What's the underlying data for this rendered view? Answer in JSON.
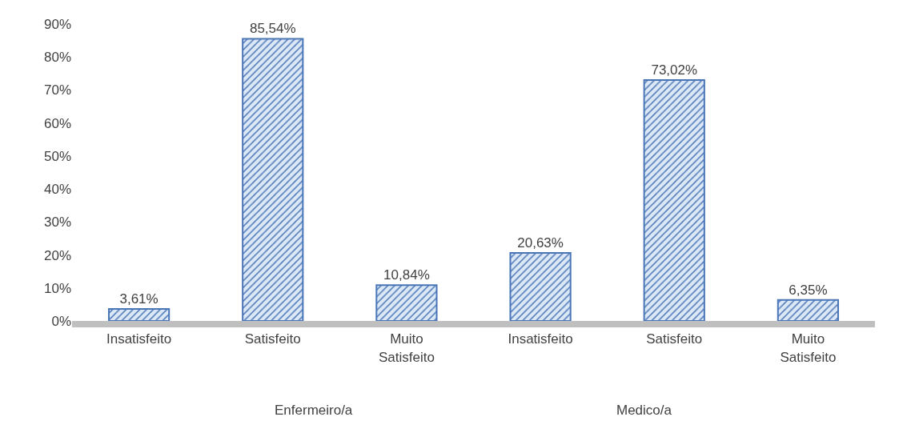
{
  "chart_data": {
    "type": "bar",
    "categories": [
      "Insatisfeito",
      "Satisfeito",
      "Muito Satisfeito",
      "Insatisfeito",
      "Satisfeito",
      "Muito Satisfeito"
    ],
    "values": [
      3.61,
      85.54,
      10.84,
      20.63,
      73.02,
      6.35
    ],
    "value_labels": [
      "3,61%",
      "85,54%",
      "10,84%",
      "20,63%",
      "73,02%",
      "6,35%"
    ],
    "color": "#4a76b8",
    "ylim": [
      0,
      90
    ],
    "yticks": [
      {
        "value": 0,
        "label": "0%"
      },
      {
        "value": 10,
        "label": "10%"
      },
      {
        "value": 20,
        "label": "20%"
      },
      {
        "value": 30,
        "label": "30%"
      },
      {
        "value": 40,
        "label": "40%"
      },
      {
        "value": 50,
        "label": "50%"
      },
      {
        "value": 60,
        "label": "60%"
      },
      {
        "value": 70,
        "label": "70%"
      },
      {
        "value": 80,
        "label": "80%"
      },
      {
        "value": 90,
        "label": "90%"
      }
    ],
    "annotations": [
      "Enfermeiro/a",
      "Medico/a"
    ]
  }
}
